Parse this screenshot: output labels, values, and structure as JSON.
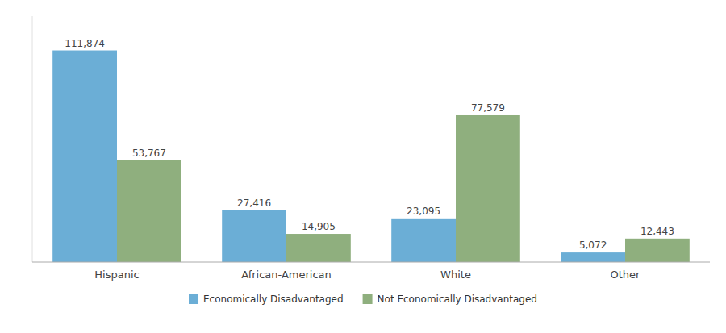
{
  "chart_data": {
    "type": "bar",
    "categories": [
      "Hispanic",
      "African-American",
      "White",
      "Other"
    ],
    "series": [
      {
        "name": "Economically Disadvantaged",
        "color": "#6BAED6",
        "values": [
          111874,
          27416,
          23095,
          5072
        ],
        "value_labels": [
          "111,874",
          "27,416",
          "23,095",
          "5,072"
        ]
      },
      {
        "name": "Not Economically Disadvantaged",
        "color": "#8FAF7E",
        "values": [
          53767,
          14905,
          77579,
          12443
        ],
        "value_labels": [
          "53,767",
          "14,905",
          "77,579",
          "12,443"
        ]
      }
    ],
    "ylim": [
      0,
      130000
    ],
    "yticks": [],
    "tick_labels": "x",
    "data_labels": true,
    "grid": false,
    "legend": "bottom"
  }
}
